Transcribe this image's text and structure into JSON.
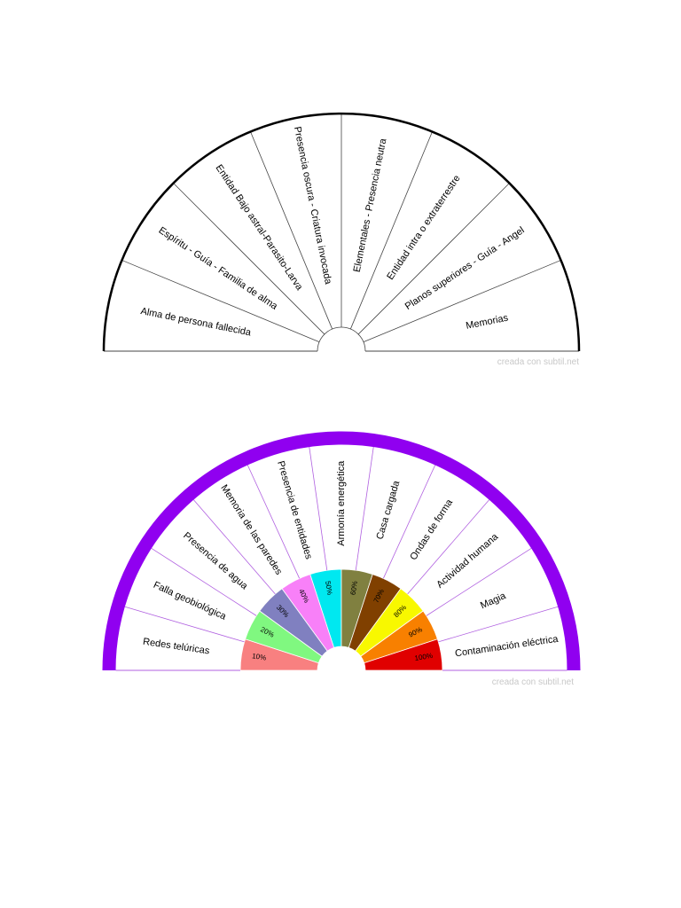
{
  "chart_top": {
    "sector_labels": [
      "Alma de persona fallecida",
      "Espíritu - Guía - Familia de alma",
      "Entidad Bajo astral-Parasito-Larva",
      "Presencia oscura - Criatura invocada",
      "Elementales - Presencia neutra",
      "Entidad intra o extraterrestre",
      "Planos superiores - Guía - Angel",
      "Memorias"
    ],
    "credit": "creada con subtil.net",
    "colors": {
      "line": "#444444",
      "rim": "#000000"
    }
  },
  "chart_bottom": {
    "outer_labels": [
      "Redes telúricas",
      "Falla geobiológica",
      "Presencia de agua",
      "Memoria de las paredes",
      "Presencia de entidades",
      "Armonía energética",
      "Casa cargada",
      "Ondas de forma",
      "Actividad humana",
      "Magia",
      "Contaminación eléctrica"
    ],
    "inner_segments": [
      {
        "label": "10%",
        "color": "#f88080"
      },
      {
        "label": "20%",
        "color": "#80f880"
      },
      {
        "label": "30%",
        "color": "#8080c0"
      },
      {
        "label": "40%",
        "color": "#f880f8"
      },
      {
        "label": "50%",
        "color": "#00e8f0"
      },
      {
        "label": "60%",
        "color": "#808040"
      },
      {
        "label": "70%",
        "color": "#804000"
      },
      {
        "label": "80%",
        "color": "#f8f800"
      },
      {
        "label": "90%",
        "color": "#f88000"
      },
      {
        "label": "100%",
        "color": "#e00000"
      }
    ],
    "credit": "creada con subtil.net",
    "colors": {
      "rim": "#9000f0",
      "line": "#b060e0"
    }
  }
}
